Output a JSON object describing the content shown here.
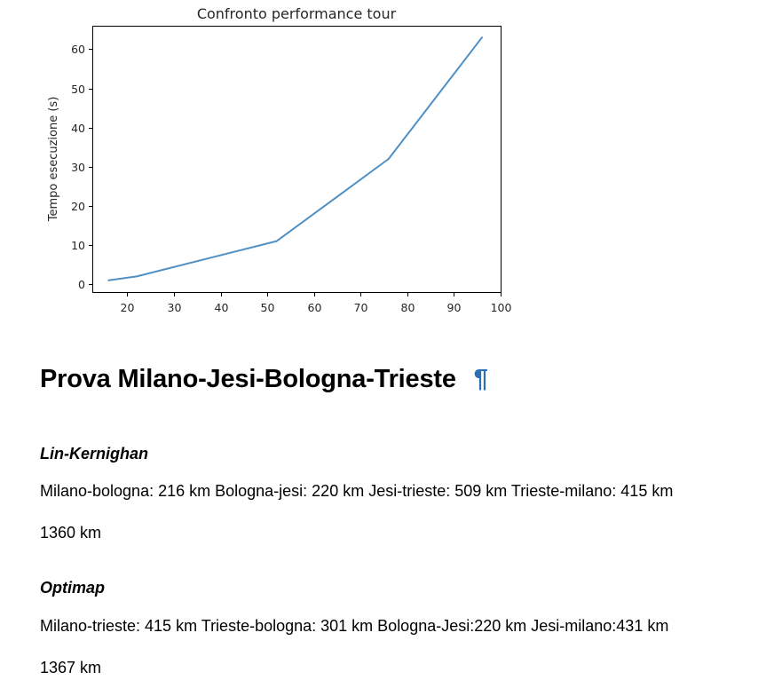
{
  "chart_data": {
    "type": "line",
    "title": "Confronto performance tour",
    "xlabel": "",
    "ylabel": "Tempo esecuzione (s)",
    "xlim": [
      12.5,
      100
    ],
    "ylim": [
      -2,
      66
    ],
    "xticks": [
      20,
      30,
      40,
      50,
      60,
      70,
      80,
      90,
      100
    ],
    "yticks": [
      0,
      10,
      20,
      30,
      40,
      50,
      60
    ],
    "grid": false,
    "series": [
      {
        "color": "#4f90c5",
        "x": [
          16,
          22,
          52,
          76,
          96
        ],
        "y": [
          1,
          2,
          11,
          32,
          63
        ]
      }
    ]
  },
  "section": {
    "heading": "Prova Milano-Jesi-Bologna-Trieste",
    "anchor_symbol": "¶",
    "anchor_color": "#2a6eb4"
  },
  "lin_kernighan": {
    "title": "Lin-Kernighan",
    "route": "Milano-bologna: 216 km Bologna-jesi: 220 km Jesi-trieste: 509 km Trieste-milano: 415 km",
    "total": "1360 km"
  },
  "optimap": {
    "title": "Optimap",
    "route": "Milano-trieste: 415 km Trieste-bologna: 301 km Bologna-Jesi:220 km Jesi-milano:431 km",
    "total": "1367 km"
  }
}
